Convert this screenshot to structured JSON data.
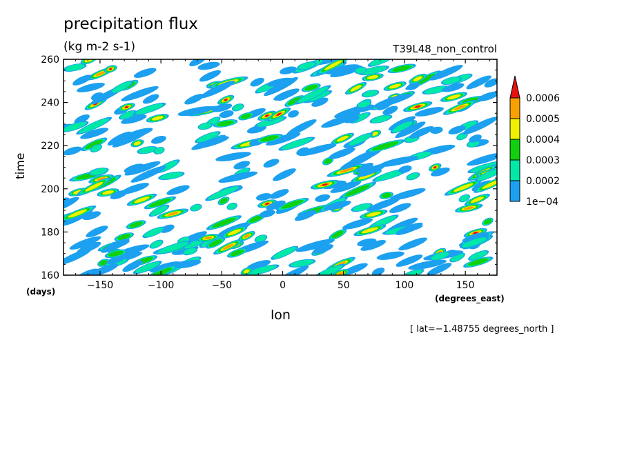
{
  "chart_data": {
    "type": "heatmap",
    "title": "precipitation flux",
    "subtitle": "(kg m-2 s-1)",
    "run_label": "T39L48_non_control",
    "xlabel": "lon",
    "ylabel": "time",
    "x_unit": "(degrees_east)",
    "y_unit": "(days)",
    "xlim": [
      -180,
      176
    ],
    "ylim": [
      160,
      260
    ],
    "x_ticks": [
      -150,
      -100,
      -50,
      0,
      50,
      100,
      150
    ],
    "x_tick_labels": [
      "−150",
      "−100",
      "−50",
      "0",
      "50",
      "100",
      "150"
    ],
    "y_ticks": [
      160,
      180,
      200,
      220,
      240,
      260
    ],
    "colorbar": {
      "levels": [
        0.0001,
        0.0002,
        0.0003,
        0.0004,
        0.0005,
        0.0006
      ],
      "labels": [
        "1e−04",
        "0.0002",
        "0.0003",
        "0.0004",
        "0.0005",
        "0.0006"
      ],
      "colors": [
        "#1ca0f0",
        "#00e8a8",
        "#10d010",
        "#f0f000",
        "#f8a000",
        "#e81010"
      ]
    },
    "footnote": "[ lat=−1.48755 degrees_north ]",
    "field_seed": 1488
  }
}
